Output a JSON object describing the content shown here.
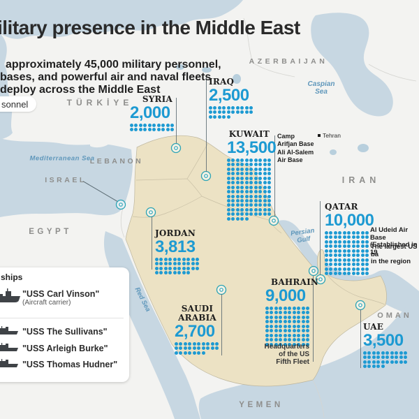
{
  "header": {
    "title": "ilitary presence in the Middle East",
    "subtitle_line1": "approximately 45,000 military personnel,",
    "subtitle_line2": "bases, and powerful air and naval fleets",
    "subtitle_line3": "deploy across the Middle East"
  },
  "legend": {
    "pill_text": "sonnel"
  },
  "colors": {
    "accent_blue": "#1d9ad2",
    "land_highlight": "#ece2c4",
    "sea": "#c7d7e2",
    "land": "#f3f3f1",
    "marker_teal": "#2ba3b5"
  },
  "deployments": {
    "syria": {
      "country": "SYRIA",
      "personnel": "2,000",
      "dots": 20
    },
    "iraq": {
      "country": "IRAQ",
      "personnel": "2,500",
      "dots": 25
    },
    "kuwait": {
      "country": "KUWAIT",
      "personnel": "13,500",
      "dots": 135
    },
    "qatar": {
      "country": "QATAR",
      "personnel": "10,000",
      "dots": 100
    },
    "jordan": {
      "country": "JORDAN",
      "personnel": "3,813",
      "dots": 38
    },
    "bahrain": {
      "country": "BAHRAIN",
      "personnel": "9,000",
      "dots": 90
    },
    "saudi": {
      "country": "SAUDI\nARABIA",
      "personnel": "2,700",
      "dots": 27
    },
    "uae": {
      "country": "UAE",
      "personnel": "3,500",
      "dots": 35
    }
  },
  "annotations": {
    "kuwait_base_1": "Camp\nArifjan Base",
    "kuwait_base_2": "Ali Al-Salem\nAir Base",
    "qatar_base_1": "Al Udeid Air Base\n(Established in 19",
    "qatar_base_2": "The largest US ba\nin the region",
    "bahrain_hq": "Headquarters\nof the US\nFifth Fleet"
  },
  "map": {
    "countries": {
      "turkiye": "TÜRKİYE",
      "azerbaijan": "AZERBAIJAN",
      "lebanon": "LEBANON",
      "israel": "ISRAEL",
      "egypt": "EGYPT",
      "iran": "IRAN",
      "oman": "OMAN",
      "yemen": "YEMEN"
    },
    "seas": {
      "mediterranean": "Mediterranean Sea",
      "caspian": "Caspian\nSea",
      "red_sea": "Red Sea",
      "persian_gulf": "Persian\nGulf"
    },
    "cities": {
      "tehran": "Tehran"
    }
  },
  "ships": {
    "heading": "ships",
    "items": [
      {
        "name": "\"USS Carl Vinson\"",
        "type": "(Aircraft carrier)"
      },
      {
        "name": "\"USS The Sullivans\"",
        "type": ""
      },
      {
        "name": "\"USS Arleigh Burke\"",
        "type": ""
      },
      {
        "name": "\"USS Thomas Hudner\"",
        "type": ""
      }
    ]
  }
}
